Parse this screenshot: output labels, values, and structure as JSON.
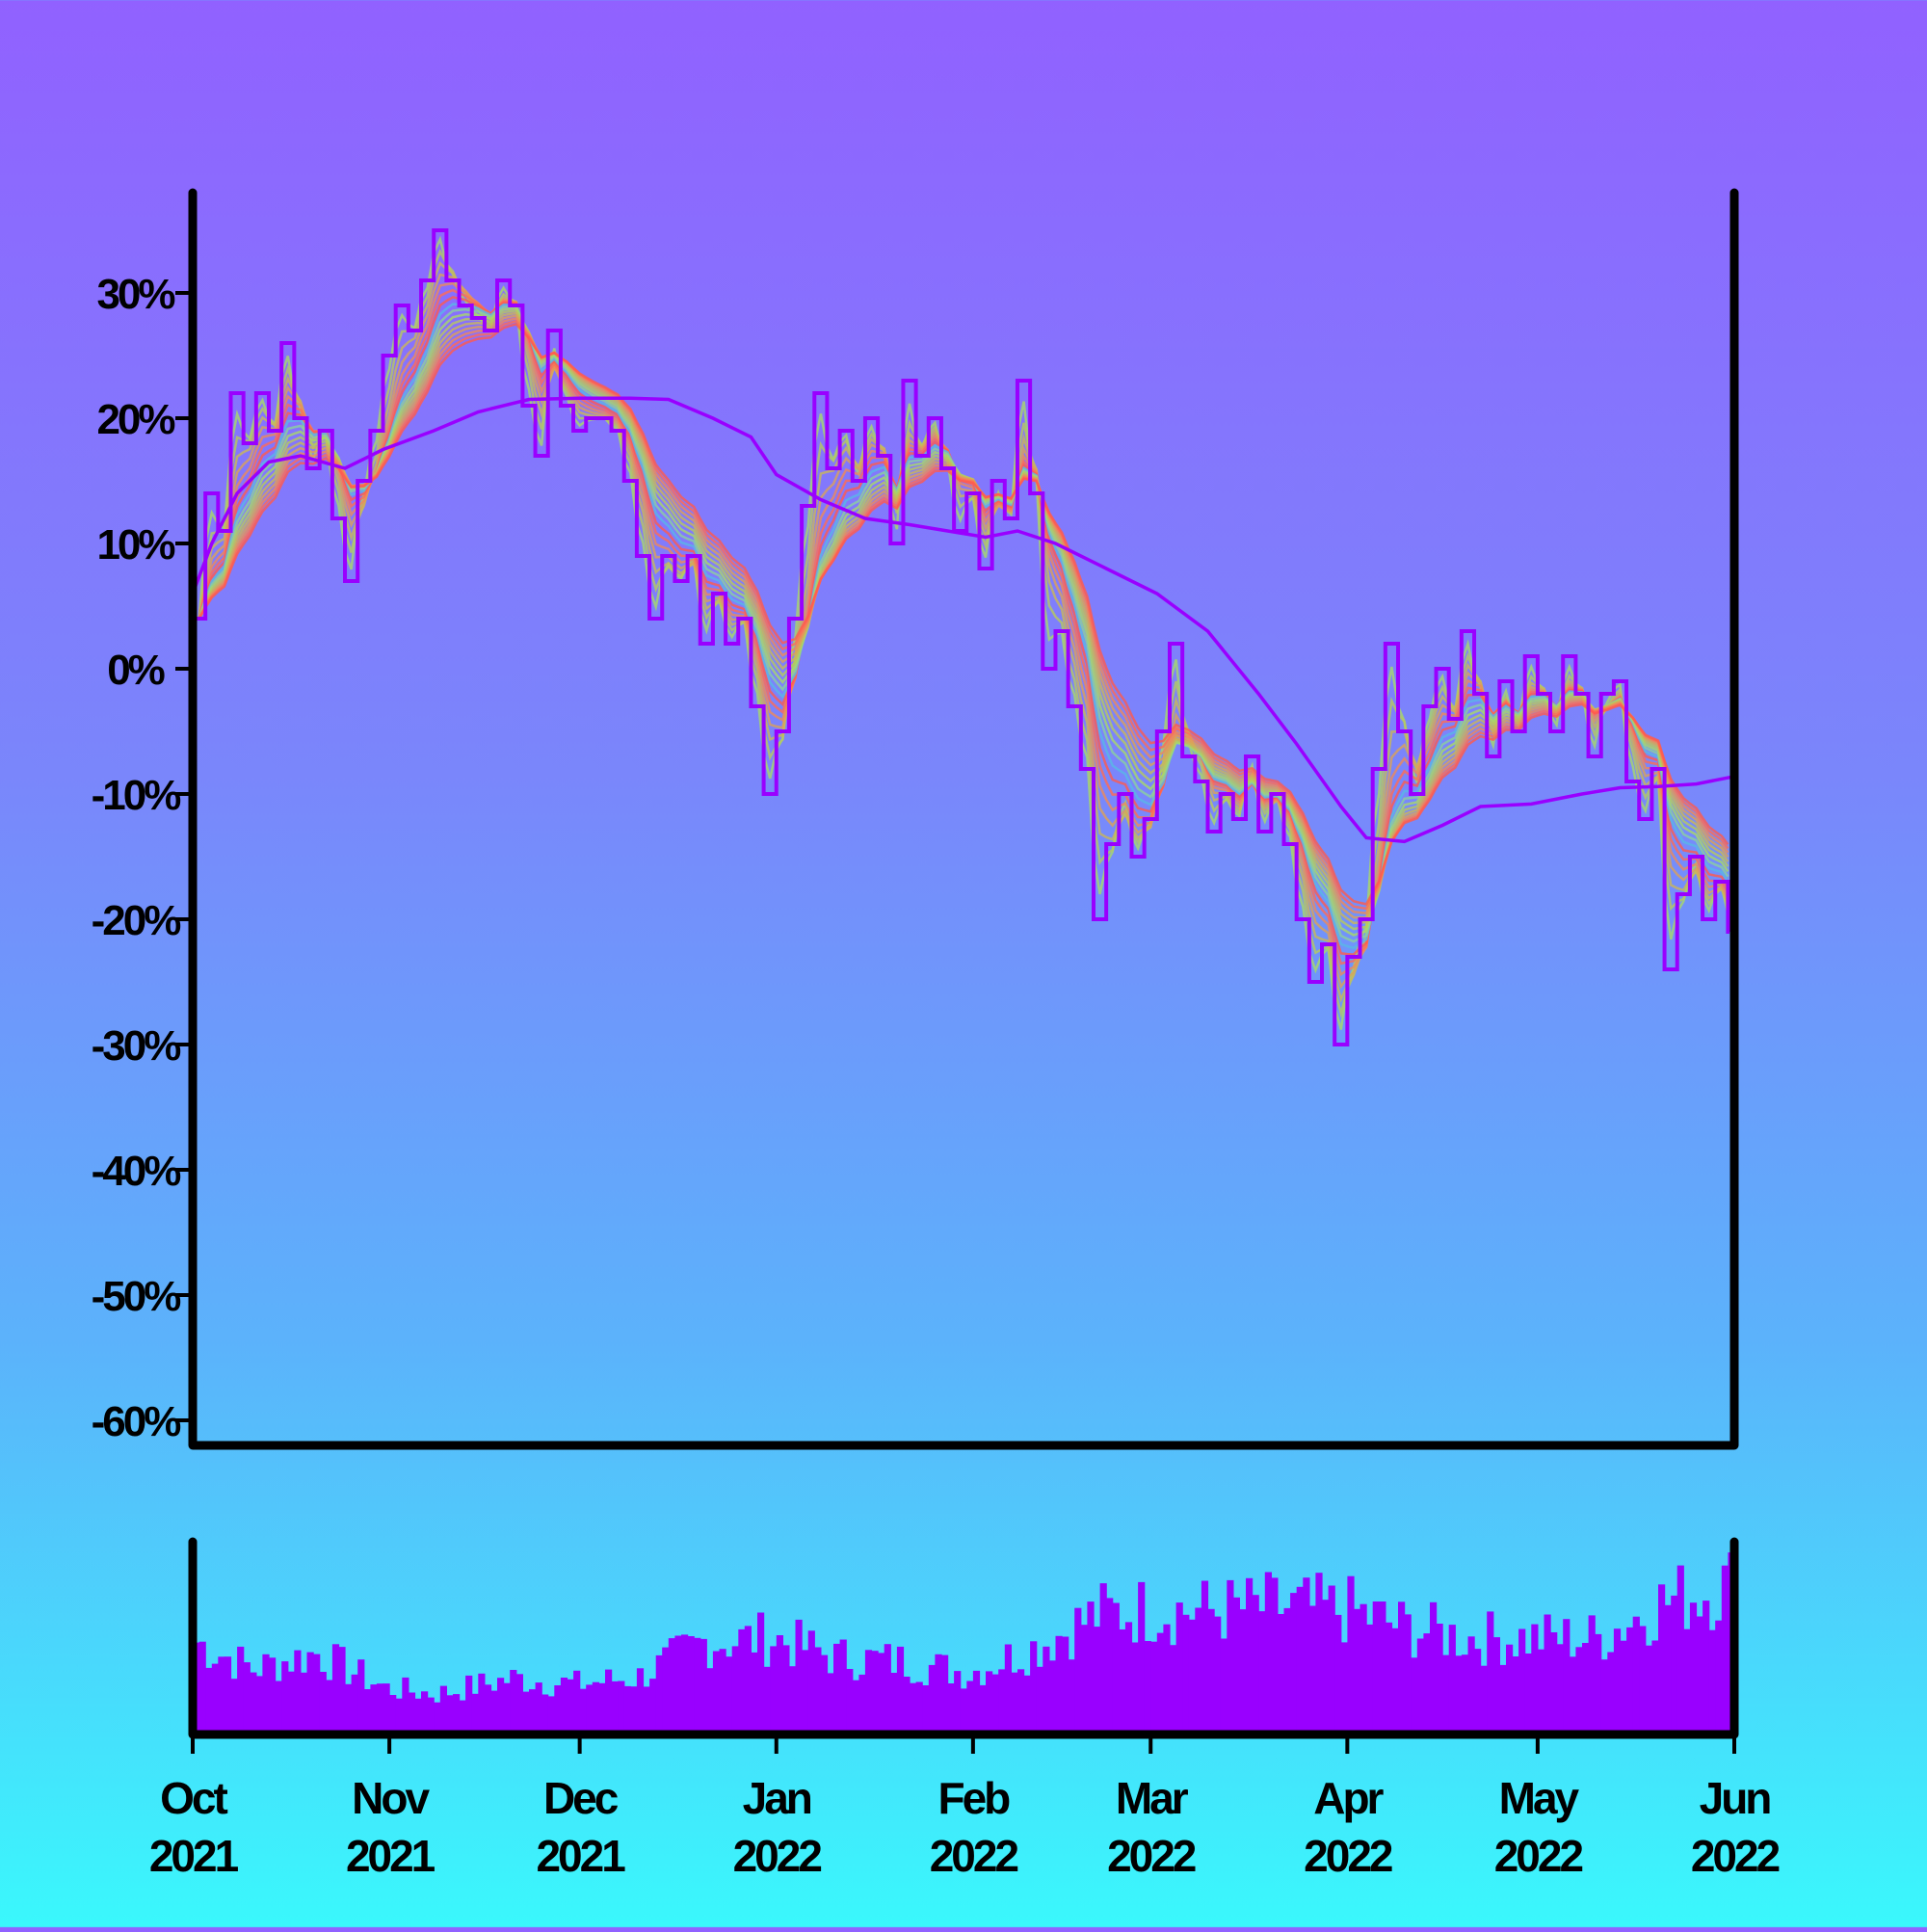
{
  "chart_data": [
    {
      "type": "line",
      "title": "",
      "xlabel": "",
      "ylabel": "",
      "x_range": [
        "2021-10-01",
        "2022-06-01"
      ],
      "ylim": [
        -62,
        38
      ],
      "y_ticks": [
        "30%",
        "20%",
        "10%",
        "0%",
        "-10%",
        "-20%",
        "-30%",
        "-40%",
        "-50%",
        "-60%"
      ],
      "y_tick_values": [
        30,
        20,
        10,
        0,
        -10,
        -20,
        -30,
        -40,
        -50,
        -60
      ],
      "x_ticks": [
        {
          "date": "2021-10-01",
          "month": "Oct",
          "year": "2021"
        },
        {
          "date": "2021-11-01",
          "month": "Nov",
          "year": "2021"
        },
        {
          "date": "2021-12-01",
          "month": "Dec",
          "year": "2021"
        },
        {
          "date": "2022-01-01",
          "month": "Jan",
          "year": "2022"
        },
        {
          "date": "2022-02-01",
          "month": "Feb",
          "year": "2022"
        },
        {
          "date": "2022-03-01",
          "month": "Mar",
          "year": "2022"
        },
        {
          "date": "2022-04-01",
          "month": "Apr",
          "year": "2022"
        },
        {
          "date": "2022-05-01",
          "month": "May",
          "year": "2022"
        },
        {
          "date": "2022-06-01",
          "month": "Jun",
          "year": "2022"
        }
      ],
      "grid": false,
      "series": [
        {
          "key": "price",
          "style": "step",
          "color": "#9900ff",
          "points": [
            [
              "2021-10-01",
              4
            ],
            [
              "2021-10-03",
              14
            ],
            [
              "2021-10-05",
              11
            ],
            [
              "2021-10-07",
              22
            ],
            [
              "2021-10-09",
              18
            ],
            [
              "2021-10-11",
              22
            ],
            [
              "2021-10-13",
              19
            ],
            [
              "2021-10-15",
              26
            ],
            [
              "2021-10-17",
              20
            ],
            [
              "2021-10-19",
              16
            ],
            [
              "2021-10-21",
              19
            ],
            [
              "2021-10-23",
              12
            ],
            [
              "2021-10-25",
              7
            ],
            [
              "2021-10-27",
              15
            ],
            [
              "2021-10-29",
              19
            ],
            [
              "2021-10-31",
              25
            ],
            [
              "2021-11-02",
              29
            ],
            [
              "2021-11-04",
              27
            ],
            [
              "2021-11-06",
              31
            ],
            [
              "2021-11-08",
              35
            ],
            [
              "2021-11-10",
              31
            ],
            [
              "2021-11-12",
              29
            ],
            [
              "2021-11-14",
              28
            ],
            [
              "2021-11-16",
              27
            ],
            [
              "2021-11-18",
              31
            ],
            [
              "2021-11-20",
              29
            ],
            [
              "2021-11-22",
              21
            ],
            [
              "2021-11-24",
              17
            ],
            [
              "2021-11-26",
              27
            ],
            [
              "2021-11-28",
              21
            ],
            [
              "2021-11-30",
              19
            ],
            [
              "2021-12-02",
              20
            ],
            [
              "2021-12-04",
              20
            ],
            [
              "2021-12-06",
              19
            ],
            [
              "2021-12-08",
              15
            ],
            [
              "2021-12-10",
              9
            ],
            [
              "2021-12-12",
              4
            ],
            [
              "2021-12-14",
              9
            ],
            [
              "2021-12-16",
              7
            ],
            [
              "2021-12-18",
              9
            ],
            [
              "2021-12-20",
              2
            ],
            [
              "2021-12-22",
              6
            ],
            [
              "2021-12-24",
              2
            ],
            [
              "2021-12-26",
              4
            ],
            [
              "2021-12-28",
              -3
            ],
            [
              "2021-12-30",
              -10
            ],
            [
              "2022-01-01",
              -5
            ],
            [
              "2022-01-03",
              4
            ],
            [
              "2022-01-05",
              13
            ],
            [
              "2022-01-07",
              22
            ],
            [
              "2022-01-09",
              16
            ],
            [
              "2022-01-11",
              19
            ],
            [
              "2022-01-13",
              15
            ],
            [
              "2022-01-15",
              20
            ],
            [
              "2022-01-17",
              17
            ],
            [
              "2022-01-19",
              10
            ],
            [
              "2022-01-21",
              23
            ],
            [
              "2022-01-23",
              17
            ],
            [
              "2022-01-25",
              20
            ],
            [
              "2022-01-27",
              16
            ],
            [
              "2022-01-29",
              11
            ],
            [
              "2022-01-31",
              14
            ],
            [
              "2022-02-02",
              8
            ],
            [
              "2022-02-04",
              15
            ],
            [
              "2022-02-06",
              12
            ],
            [
              "2022-02-08",
              23
            ],
            [
              "2022-02-10",
              14
            ],
            [
              "2022-02-12",
              0
            ],
            [
              "2022-02-14",
              3
            ],
            [
              "2022-02-16",
              -3
            ],
            [
              "2022-02-18",
              -8
            ],
            [
              "2022-02-20",
              -20
            ],
            [
              "2022-02-22",
              -14
            ],
            [
              "2022-02-24",
              -10
            ],
            [
              "2022-02-26",
              -15
            ],
            [
              "2022-02-28",
              -12
            ],
            [
              "2022-03-02",
              -5
            ],
            [
              "2022-03-04",
              2
            ],
            [
              "2022-03-06",
              -7
            ],
            [
              "2022-03-08",
              -9
            ],
            [
              "2022-03-10",
              -13
            ],
            [
              "2022-03-12",
              -10
            ],
            [
              "2022-03-14",
              -12
            ],
            [
              "2022-03-16",
              -7
            ],
            [
              "2022-03-18",
              -13
            ],
            [
              "2022-03-20",
              -10
            ],
            [
              "2022-03-22",
              -14
            ],
            [
              "2022-03-24",
              -20
            ],
            [
              "2022-03-26",
              -25
            ],
            [
              "2022-03-28",
              -22
            ],
            [
              "2022-03-30",
              -30
            ],
            [
              "2022-04-01",
              -23
            ],
            [
              "2022-04-03",
              -20
            ],
            [
              "2022-04-05",
              -8
            ],
            [
              "2022-04-07",
              2
            ],
            [
              "2022-04-09",
              -5
            ],
            [
              "2022-04-11",
              -10
            ],
            [
              "2022-04-13",
              -3
            ],
            [
              "2022-04-15",
              0
            ],
            [
              "2022-04-17",
              -4
            ],
            [
              "2022-04-19",
              3
            ],
            [
              "2022-04-21",
              -2
            ],
            [
              "2022-04-23",
              -7
            ],
            [
              "2022-04-25",
              -1
            ],
            [
              "2022-04-27",
              -5
            ],
            [
              "2022-04-29",
              1
            ],
            [
              "2022-05-01",
              -2
            ],
            [
              "2022-05-03",
              -5
            ],
            [
              "2022-05-05",
              1
            ],
            [
              "2022-05-07",
              -2
            ],
            [
              "2022-05-09",
              -7
            ],
            [
              "2022-05-11",
              -2
            ],
            [
              "2022-05-13",
              -1
            ],
            [
              "2022-05-15",
              -9
            ],
            [
              "2022-05-17",
              -12
            ],
            [
              "2022-05-19",
              -8
            ],
            [
              "2022-05-21",
              -24
            ],
            [
              "2022-05-23",
              -18
            ],
            [
              "2022-05-25",
              -15
            ],
            [
              "2022-05-27",
              -20
            ],
            [
              "2022-05-29",
              -17
            ],
            [
              "2022-05-31",
              -21
            ]
          ]
        },
        {
          "key": "moving_average",
          "style": "line",
          "color": "#9900ff",
          "points": [
            [
              "2021-10-01",
              6
            ],
            [
              "2021-10-04",
              10
            ],
            [
              "2021-10-08",
              14
            ],
            [
              "2021-10-13",
              16.5
            ],
            [
              "2021-10-18",
              17
            ],
            [
              "2021-10-25",
              16
            ],
            [
              "2021-10-31",
              17.5
            ],
            [
              "2021-11-08",
              19
            ],
            [
              "2021-11-15",
              20.5
            ],
            [
              "2021-11-23",
              21.5
            ],
            [
              "2021-12-01",
              21.6
            ],
            [
              "2021-12-09",
              21.6
            ],
            [
              "2021-12-15",
              21.5
            ],
            [
              "2021-12-22",
              20
            ],
            [
              "2021-12-28",
              18.5
            ],
            [
              "2022-01-01",
              15.5
            ],
            [
              "2022-01-08",
              13.5
            ],
            [
              "2022-01-15",
              12
            ],
            [
              "2022-01-22",
              11.5
            ],
            [
              "2022-01-28",
              11
            ],
            [
              "2022-02-03",
              10.5
            ],
            [
              "2022-02-08",
              11
            ],
            [
              "2022-02-14",
              10
            ],
            [
              "2022-02-22",
              8
            ],
            [
              "2022-03-02",
              6
            ],
            [
              "2022-03-10",
              3
            ],
            [
              "2022-03-18",
              -2
            ],
            [
              "2022-03-24",
              -6
            ],
            [
              "2022-03-31",
              -11
            ],
            [
              "2022-04-04",
              -13.5
            ],
            [
              "2022-04-10",
              -13.8
            ],
            [
              "2022-04-16",
              -12.5
            ],
            [
              "2022-04-22",
              -11
            ],
            [
              "2022-04-30",
              -10.8
            ],
            [
              "2022-05-08",
              -10
            ],
            [
              "2022-05-14",
              -9.5
            ],
            [
              "2022-05-20",
              -9.4
            ],
            [
              "2022-05-26",
              -9.2
            ],
            [
              "2022-06-01",
              -8.6
            ]
          ]
        }
      ]
    },
    {
      "type": "bar",
      "title": "",
      "x_range": [
        "2021-10-01",
        "2022-06-01"
      ],
      "y_axis_labels": false,
      "color": "#9900ff",
      "volume_profile": [
        [
          "2021-10-01",
          0.48
        ],
        [
          "2021-10-10",
          0.34
        ],
        [
          "2021-10-20",
          0.42
        ],
        [
          "2021-10-31",
          0.24
        ],
        [
          "2021-11-08",
          0.21
        ],
        [
          "2021-11-20",
          0.29
        ],
        [
          "2021-11-30",
          0.26
        ],
        [
          "2021-12-10",
          0.3
        ],
        [
          "2021-12-20",
          0.48
        ],
        [
          "2021-12-31",
          0.5
        ],
        [
          "2022-01-10",
          0.4
        ],
        [
          "2022-01-20",
          0.38
        ],
        [
          "2022-01-31",
          0.32
        ],
        [
          "2022-02-10",
          0.45
        ],
        [
          "2022-02-20",
          0.62
        ],
        [
          "2022-03-01",
          0.65
        ],
        [
          "2022-03-10",
          0.64
        ],
        [
          "2022-03-20",
          0.66
        ],
        [
          "2022-04-01",
          0.64
        ],
        [
          "2022-04-10",
          0.55
        ],
        [
          "2022-04-20",
          0.5
        ],
        [
          "2022-04-30",
          0.5
        ],
        [
          "2022-05-10",
          0.5
        ],
        [
          "2022-05-20",
          0.68
        ],
        [
          "2022-05-31",
          0.78
        ]
      ]
    }
  ]
}
